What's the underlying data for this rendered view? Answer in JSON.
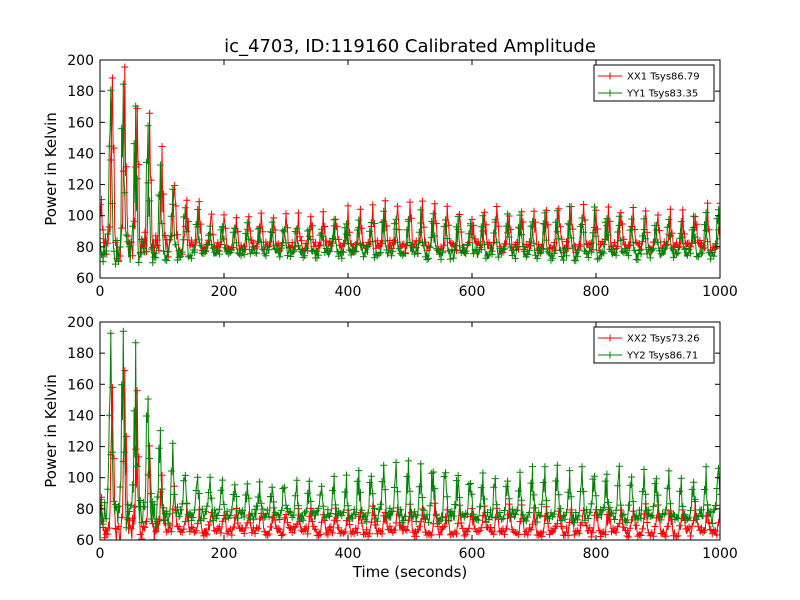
{
  "title": "ic_4703, ID:119160 Calibrated Amplitude",
  "chart_data": [
    {
      "type": "line",
      "xlabel": "",
      "ylabel": "Power in Kelvin",
      "xlim": [
        0,
        1000
      ],
      "ylim": [
        60,
        200
      ],
      "xticks": [
        "0",
        "200",
        "400",
        "600",
        "800",
        "1000"
      ],
      "yticks": [
        "60",
        "80",
        "100",
        "120",
        "140",
        "160",
        "180",
        "200"
      ],
      "legend_position": "top-right",
      "series": [
        {
          "name": "XX1 Tsys86.79",
          "color": "#ff0000",
          "period": 20,
          "baseline_min": [
            [
              0,
              80
            ],
            [
              1000,
              80
            ]
          ],
          "envelope_max": [
            [
              0,
              110
            ],
            [
              10,
              185
            ],
            [
              30,
              190
            ],
            [
              50,
              185
            ],
            [
              70,
              170
            ],
            [
              90,
              148
            ],
            [
              110,
              130
            ],
            [
              140,
              112
            ],
            [
              180,
              102
            ],
            [
              200,
              99
            ],
            [
              350,
              99
            ],
            [
              420,
              104
            ],
            [
              500,
              111
            ],
            [
              560,
              106
            ],
            [
              600,
              101
            ],
            [
              700,
              105
            ],
            [
              780,
              108
            ],
            [
              860,
              102
            ],
            [
              950,
              100
            ],
            [
              1000,
              108
            ]
          ]
        },
        {
          "name": "YY1 Tsys83.35",
          "color": "#008000",
          "period": 20,
          "baseline_min": [
            [
              0,
              77
            ],
            [
              1000,
              75
            ]
          ],
          "envelope_max": [
            [
              0,
              100
            ],
            [
              10,
              175
            ],
            [
              30,
              182
            ],
            [
              50,
              176
            ],
            [
              70,
              162
            ],
            [
              90,
              140
            ],
            [
              110,
              122
            ],
            [
              140,
              106
            ],
            [
              180,
              96
            ],
            [
              200,
              94
            ],
            [
              350,
              94
            ],
            [
              420,
              98
            ],
            [
              500,
              102
            ],
            [
              560,
              99
            ],
            [
              600,
              96
            ],
            [
              700,
              100
            ],
            [
              780,
              103
            ],
            [
              860,
              98
            ],
            [
              950,
              96
            ],
            [
              1000,
              104
            ]
          ]
        }
      ]
    },
    {
      "type": "line",
      "xlabel": "Time (seconds)",
      "ylabel": "Power in Kelvin",
      "xlim": [
        0,
        1000
      ],
      "ylim": [
        60,
        200
      ],
      "xticks": [
        "0",
        "200",
        "400",
        "600",
        "800",
        "1000"
      ],
      "yticks": [
        "60",
        "80",
        "100",
        "120",
        "140",
        "160",
        "180",
        "200"
      ],
      "legend_position": "top-right",
      "series": [
        {
          "name": "XX2 Tsys73.26",
          "color": "#ff0000",
          "period": 20,
          "baseline_min": [
            [
              0,
              66
            ],
            [
              1000,
              65
            ]
          ],
          "envelope_max": [
            [
              0,
              82
            ],
            [
              10,
              155
            ],
            [
              30,
              165
            ],
            [
              50,
              160
            ],
            [
              70,
              140
            ],
            [
              90,
              115
            ],
            [
              110,
              95
            ],
            [
              140,
              82
            ],
            [
              200,
              78
            ],
            [
              400,
              78
            ],
            [
              500,
              82
            ],
            [
              600,
              80
            ],
            [
              1000,
              82
            ]
          ]
        },
        {
          "name": "YY2 Tsys86.71",
          "color": "#008000",
          "period": 20,
          "baseline_min": [
            [
              0,
              76
            ],
            [
              1000,
              75
            ]
          ],
          "envelope_max": [
            [
              0,
              100
            ],
            [
              10,
              185
            ],
            [
              30,
              190
            ],
            [
              50,
              185
            ],
            [
              70,
              170
            ],
            [
              90,
              145
            ],
            [
              110,
              125
            ],
            [
              140,
              105
            ],
            [
              180,
              98
            ],
            [
              200,
              97
            ],
            [
              350,
              96
            ],
            [
              420,
              104
            ],
            [
              500,
              112
            ],
            [
              560,
              107
            ],
            [
              600,
              100
            ],
            [
              700,
              104
            ],
            [
              780,
              106
            ],
            [
              860,
              104
            ],
            [
              950,
              100
            ],
            [
              1000,
              108
            ]
          ]
        }
      ]
    }
  ]
}
